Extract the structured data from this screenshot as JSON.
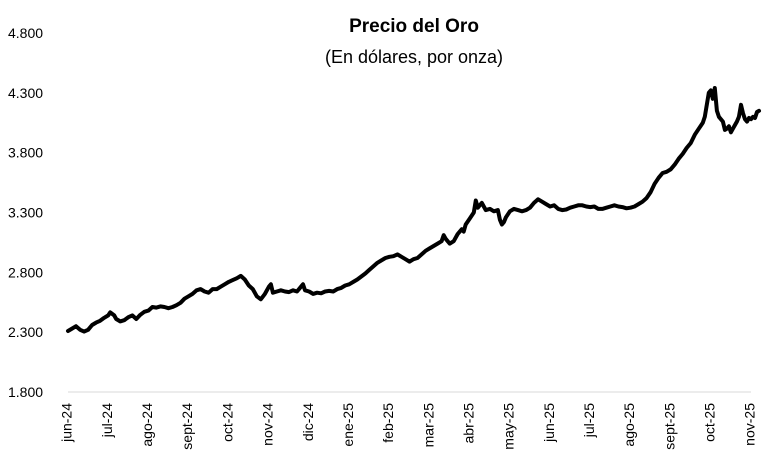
{
  "chart_data": {
    "type": "line",
    "title": "Precio del Oro",
    "subtitle": "(En dólares, por onza)",
    "xlabel": "",
    "ylabel": "",
    "ylim": [
      1800,
      4800
    ],
    "yticks": [
      4800,
      4300,
      3800,
      3300,
      2800,
      2300,
      1800
    ],
    "ytick_labels": [
      "4.800",
      "4.300",
      "3.800",
      "3.300",
      "2.800",
      "2.300",
      "1.800"
    ],
    "grid": false,
    "legend": "none",
    "x_categories": [
      "jun-24",
      "jul-24",
      "ago-24",
      "sept-24",
      "oct-24",
      "nov-24",
      "dic-24",
      "ene-25",
      "feb-25",
      "mar-25",
      "abr-25",
      "may-25",
      "jun-25",
      "jul-25",
      "ago-25",
      "sept-25",
      "oct-25",
      "nov-25"
    ],
    "series": [
      {
        "name": "Precio del Oro",
        "color": "#000000",
        "points": [
          [
            0,
            2310
          ],
          [
            0.1,
            2330
          ],
          [
            0.2,
            2350
          ],
          [
            0.3,
            2320
          ],
          [
            0.4,
            2305
          ],
          [
            0.5,
            2320
          ],
          [
            0.6,
            2360
          ],
          [
            0.7,
            2380
          ],
          [
            0.8,
            2395
          ],
          [
            0.9,
            2420
          ],
          [
            1.0,
            2440
          ],
          [
            1.05,
            2465
          ],
          [
            1.15,
            2440
          ],
          [
            1.2,
            2410
          ],
          [
            1.3,
            2390
          ],
          [
            1.4,
            2400
          ],
          [
            1.5,
            2425
          ],
          [
            1.6,
            2440
          ],
          [
            1.7,
            2410
          ],
          [
            1.8,
            2445
          ],
          [
            1.9,
            2470
          ],
          [
            2.0,
            2480
          ],
          [
            2.1,
            2510
          ],
          [
            2.2,
            2505
          ],
          [
            2.3,
            2515
          ],
          [
            2.4,
            2510
          ],
          [
            2.5,
            2500
          ],
          [
            2.6,
            2510
          ],
          [
            2.7,
            2525
          ],
          [
            2.8,
            2545
          ],
          [
            2.9,
            2580
          ],
          [
            3.0,
            2600
          ],
          [
            3.1,
            2620
          ],
          [
            3.2,
            2650
          ],
          [
            3.3,
            2660
          ],
          [
            3.4,
            2640
          ],
          [
            3.5,
            2630
          ],
          [
            3.6,
            2660
          ],
          [
            3.7,
            2660
          ],
          [
            3.8,
            2680
          ],
          [
            3.9,
            2700
          ],
          [
            4.0,
            2720
          ],
          [
            4.1,
            2735
          ],
          [
            4.2,
            2750
          ],
          [
            4.3,
            2770
          ],
          [
            4.4,
            2740
          ],
          [
            4.5,
            2690
          ],
          [
            4.6,
            2660
          ],
          [
            4.7,
            2600
          ],
          [
            4.8,
            2575
          ],
          [
            4.9,
            2620
          ],
          [
            5.0,
            2680
          ],
          [
            5.05,
            2700
          ],
          [
            5.1,
            2630
          ],
          [
            5.2,
            2640
          ],
          [
            5.3,
            2650
          ],
          [
            5.4,
            2640
          ],
          [
            5.5,
            2635
          ],
          [
            5.6,
            2650
          ],
          [
            5.7,
            2640
          ],
          [
            5.8,
            2680
          ],
          [
            5.85,
            2700
          ],
          [
            5.9,
            2650
          ],
          [
            6.0,
            2640
          ],
          [
            6.1,
            2620
          ],
          [
            6.2,
            2630
          ],
          [
            6.3,
            2625
          ],
          [
            6.4,
            2640
          ],
          [
            6.5,
            2645
          ],
          [
            6.6,
            2640
          ],
          [
            6.7,
            2660
          ],
          [
            6.8,
            2670
          ],
          [
            6.9,
            2690
          ],
          [
            7.0,
            2700
          ],
          [
            7.1,
            2720
          ],
          [
            7.2,
            2740
          ],
          [
            7.3,
            2765
          ],
          [
            7.4,
            2790
          ],
          [
            7.5,
            2820
          ],
          [
            7.6,
            2850
          ],
          [
            7.7,
            2880
          ],
          [
            7.8,
            2900
          ],
          [
            7.9,
            2920
          ],
          [
            8.0,
            2930
          ],
          [
            8.1,
            2935
          ],
          [
            8.2,
            2950
          ],
          [
            8.3,
            2930
          ],
          [
            8.4,
            2910
          ],
          [
            8.5,
            2890
          ],
          [
            8.6,
            2910
          ],
          [
            8.7,
            2920
          ],
          [
            8.8,
            2950
          ],
          [
            8.9,
            2980
          ],
          [
            9.0,
            3000
          ],
          [
            9.1,
            3020
          ],
          [
            9.2,
            3040
          ],
          [
            9.3,
            3060
          ],
          [
            9.35,
            3110
          ],
          [
            9.4,
            3080
          ],
          [
            9.5,
            3040
          ],
          [
            9.6,
            3060
          ],
          [
            9.7,
            3120
          ],
          [
            9.8,
            3160
          ],
          [
            9.85,
            3140
          ],
          [
            9.9,
            3200
          ],
          [
            10.0,
            3250
          ],
          [
            10.1,
            3300
          ],
          [
            10.15,
            3400
          ],
          [
            10.2,
            3340
          ],
          [
            10.3,
            3380
          ],
          [
            10.4,
            3320
          ],
          [
            10.5,
            3330
          ],
          [
            10.6,
            3310
          ],
          [
            10.7,
            3320
          ],
          [
            10.75,
            3240
          ],
          [
            10.8,
            3200
          ],
          [
            10.85,
            3220
          ],
          [
            10.9,
            3260
          ],
          [
            11.0,
            3310
          ],
          [
            11.1,
            3330
          ],
          [
            11.2,
            3320
          ],
          [
            11.3,
            3310
          ],
          [
            11.4,
            3320
          ],
          [
            11.5,
            3340
          ],
          [
            11.6,
            3380
          ],
          [
            11.7,
            3410
          ],
          [
            11.8,
            3390
          ],
          [
            11.9,
            3370
          ],
          [
            12.0,
            3350
          ],
          [
            12.1,
            3360
          ],
          [
            12.2,
            3330
          ],
          [
            12.3,
            3320
          ],
          [
            12.4,
            3325
          ],
          [
            12.5,
            3340
          ],
          [
            12.6,
            3350
          ],
          [
            12.7,
            3360
          ],
          [
            12.8,
            3360
          ],
          [
            12.9,
            3350
          ],
          [
            13.0,
            3345
          ],
          [
            13.1,
            3350
          ],
          [
            13.2,
            3330
          ],
          [
            13.3,
            3330
          ],
          [
            13.4,
            3340
          ],
          [
            13.5,
            3350
          ],
          [
            13.6,
            3360
          ],
          [
            13.7,
            3350
          ],
          [
            13.8,
            3345
          ],
          [
            13.9,
            3335
          ],
          [
            14.0,
            3340
          ],
          [
            14.1,
            3350
          ],
          [
            14.2,
            3370
          ],
          [
            14.3,
            3390
          ],
          [
            14.4,
            3420
          ],
          [
            14.5,
            3470
          ],
          [
            14.6,
            3540
          ],
          [
            14.7,
            3590
          ],
          [
            14.8,
            3630
          ],
          [
            14.9,
            3640
          ],
          [
            15.0,
            3660
          ],
          [
            15.1,
            3700
          ],
          [
            15.2,
            3750
          ],
          [
            15.3,
            3790
          ],
          [
            15.4,
            3840
          ],
          [
            15.5,
            3880
          ],
          [
            15.6,
            3950
          ],
          [
            15.7,
            4000
          ],
          [
            15.8,
            4050
          ],
          [
            15.85,
            4100
          ],
          [
            15.9,
            4200
          ],
          [
            15.95,
            4300
          ],
          [
            16.0,
            4320
          ],
          [
            16.05,
            4250
          ],
          [
            16.1,
            4340
          ],
          [
            16.15,
            4150
          ],
          [
            16.2,
            4100
          ],
          [
            16.3,
            4060
          ],
          [
            16.35,
            3990
          ],
          [
            16.4,
            4000
          ],
          [
            16.45,
            4020
          ],
          [
            16.5,
            3970
          ],
          [
            16.55,
            4000
          ],
          [
            16.6,
            4030
          ],
          [
            16.65,
            4060
          ],
          [
            16.7,
            4100
          ],
          [
            16.75,
            4200
          ],
          [
            16.8,
            4130
          ],
          [
            16.85,
            4080
          ],
          [
            16.9,
            4060
          ],
          [
            16.95,
            4090
          ],
          [
            17.0,
            4080
          ],
          [
            17.05,
            4100
          ],
          [
            17.1,
            4090
          ],
          [
            17.15,
            4140
          ],
          [
            17.2,
            4150
          ]
        ]
      }
    ]
  }
}
